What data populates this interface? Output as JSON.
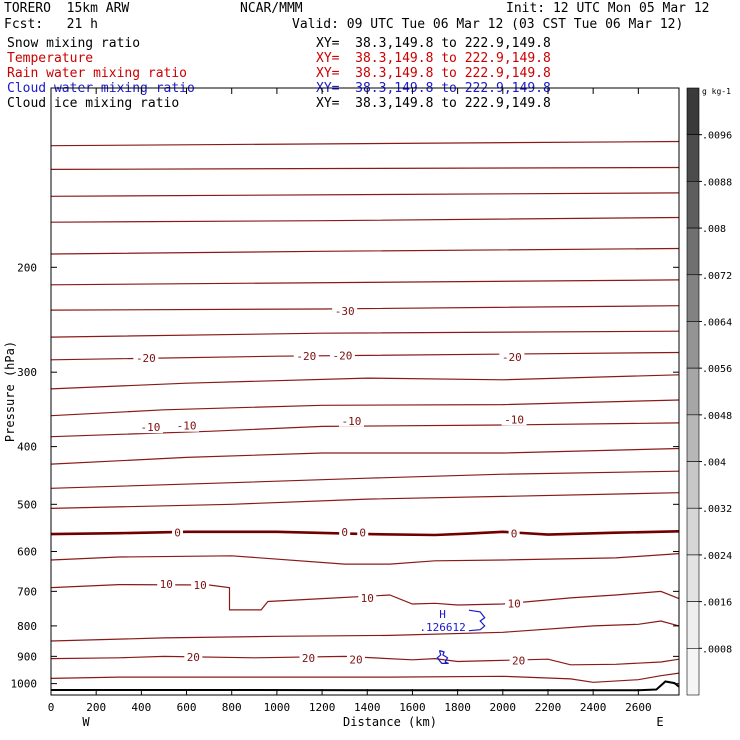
{
  "header": {
    "model": "TORERO  15km ARW",
    "center": "NCAR/MMM",
    "init": "Init: 12 UTC Mon 05 Mar 12",
    "fcst": "Fcst:   21 h",
    "valid": "Valid: 09 UTC Tue 06 Mar 12 (03 CST Tue 06 Mar 12)"
  },
  "fields": [
    {
      "name": "Snow mixing ratio",
      "xy": "XY=  38.3,149.8 to 222.9,149.8",
      "color": "#000000"
    },
    {
      "name": "Temperature",
      "xy": "XY=  38.3,149.8 to 222.9,149.8",
      "color": "#cc0000"
    },
    {
      "name": "Rain water mixing ratio",
      "xy": "XY=  38.3,149.8 to 222.9,149.8",
      "color": "#cc0000"
    },
    {
      "name": "Cloud water mixing ratio",
      "xy": "XY=  38.3,149.8 to 222.9,149.8",
      "color": "#1a1acc"
    },
    {
      "name": "Cloud ice mixing ratio",
      "xy": "XY=  38.3,149.8 to 222.9,149.8",
      "color": "#000000"
    }
  ],
  "chart_data": {
    "type": "contour",
    "xlabel": "Distance (km)",
    "ylabel": "Pressure (hPa)",
    "xlim": [
      0,
      2780
    ],
    "ylim": [
      1045,
      100
    ],
    "y_scale": "log",
    "x_ticks": [
      0,
      200,
      400,
      600,
      800,
      1000,
      1200,
      1400,
      1600,
      1800,
      2000,
      2200,
      2400,
      2600
    ],
    "y_ticks": [
      200,
      300,
      400,
      500,
      600,
      700,
      800,
      900,
      1000
    ],
    "x_end_labels": {
      "left": "W",
      "right": "E"
    },
    "temperature_contours": [
      {
        "level": -60,
        "points": [
          [
            0,
            125
          ],
          [
            2780,
            123
          ]
        ]
      },
      {
        "level": -55,
        "points": [
          [
            0,
            137
          ],
          [
            2780,
            136
          ]
        ]
      },
      {
        "level": -50,
        "points": [
          [
            0,
            152
          ],
          [
            2780,
            150
          ]
        ]
      },
      {
        "level": -50,
        "points": [
          [
            0,
            168
          ],
          [
            1200,
            167
          ],
          [
            2780,
            165
          ]
        ]
      },
      {
        "level": -40,
        "points": [
          [
            0,
            190
          ],
          [
            1200,
            188
          ],
          [
            2780,
            186
          ]
        ]
      },
      {
        "level": -40,
        "points": [
          [
            0,
            214
          ],
          [
            2780,
            210
          ]
        ]
      },
      {
        "level": -30,
        "points": [
          [
            0,
            236
          ],
          [
            1200,
            235
          ],
          [
            2780,
            232
          ]
        ]
      },
      {
        "level": -30,
        "points": [
          [
            0,
            262
          ],
          [
            1200,
            258
          ],
          [
            2780,
            256
          ]
        ]
      },
      {
        "level": -20,
        "points": [
          [
            0,
            286
          ],
          [
            1000,
            282
          ],
          [
            2780,
            278
          ]
        ]
      },
      {
        "level": -20,
        "points": [
          [
            0,
            320
          ],
          [
            600,
            313
          ],
          [
            1400,
            307
          ],
          [
            2000,
            309
          ],
          [
            2780,
            303
          ]
        ]
      },
      {
        "level": -20,
        "points": [
          [
            0,
            355
          ],
          [
            500,
            347
          ],
          [
            1200,
            341
          ],
          [
            2000,
            340
          ],
          [
            2780,
            334
          ]
        ]
      },
      {
        "level": -10,
        "points": [
          [
            0,
            385
          ],
          [
            700,
            377
          ],
          [
            1200,
            370
          ],
          [
            2000,
            368
          ],
          [
            2780,
            365
          ]
        ]
      },
      {
        "level": -10,
        "points": [
          [
            0,
            428
          ],
          [
            600,
            417
          ],
          [
            1200,
            410
          ],
          [
            2000,
            410
          ],
          [
            2780,
            403
          ]
        ]
      },
      {
        "level": -10,
        "points": [
          [
            0,
            470
          ],
          [
            800,
            460
          ],
          [
            1400,
            452
          ],
          [
            2000,
            445
          ],
          [
            2780,
            440
          ]
        ]
      },
      {
        "level": -10,
        "points": [
          [
            0,
            508
          ],
          [
            800,
            500
          ],
          [
            1400,
            490
          ],
          [
            2000,
            485
          ],
          [
            2780,
            478
          ]
        ]
      },
      {
        "level": 0,
        "points": [
          [
            0,
            561
          ],
          [
            300,
            559
          ],
          [
            600,
            556
          ],
          [
            1000,
            556
          ],
          [
            1400,
            561
          ],
          [
            1700,
            563
          ],
          [
            1850,
            560
          ],
          [
            2000,
            556
          ],
          [
            2200,
            562
          ],
          [
            2500,
            558
          ],
          [
            2780,
            555
          ]
        ]
      },
      {
        "level": 10,
        "points": [
          [
            0,
            620
          ],
          [
            300,
            613
          ],
          [
            800,
            610
          ],
          [
            1300,
            630
          ],
          [
            1500,
            630
          ],
          [
            1700,
            622
          ],
          [
            2000,
            620
          ],
          [
            2500,
            615
          ],
          [
            2780,
            605
          ]
        ]
      },
      {
        "level": 10,
        "points": [
          [
            0,
            690
          ],
          [
            300,
            682
          ],
          [
            700,
            683
          ],
          [
            790,
            690
          ],
          [
            790,
            752
          ],
          [
            930,
            752
          ],
          [
            960,
            728
          ],
          [
            1200,
            720
          ],
          [
            1500,
            710
          ],
          [
            1600,
            735
          ],
          [
            1700,
            733
          ],
          [
            1800,
            738
          ],
          [
            2000,
            735
          ],
          [
            2300,
            718
          ],
          [
            2500,
            710
          ],
          [
            2700,
            700
          ],
          [
            2780,
            720
          ]
        ]
      },
      {
        "level": 20,
        "points": [
          [
            0,
            848
          ],
          [
            500,
            838
          ],
          [
            1000,
            833
          ],
          [
            1500,
            830
          ],
          [
            2000,
            820
          ],
          [
            2400,
            800
          ],
          [
            2600,
            795
          ],
          [
            2700,
            785
          ],
          [
            2780,
            800
          ]
        ]
      },
      {
        "level": 20,
        "points": [
          [
            0,
            908
          ],
          [
            300,
            905
          ],
          [
            500,
            900
          ],
          [
            900,
            905
          ],
          [
            1300,
            900
          ],
          [
            1600,
            912
          ],
          [
            1700,
            908
          ],
          [
            1800,
            918
          ],
          [
            1950,
            915
          ],
          [
            2200,
            910
          ],
          [
            2300,
            930
          ],
          [
            2500,
            928
          ],
          [
            2700,
            920
          ],
          [
            2780,
            910
          ]
        ]
      },
      {
        "level": 20,
        "points": [
          [
            0,
            980
          ],
          [
            300,
            975
          ],
          [
            900,
            975
          ],
          [
            1500,
            975
          ],
          [
            2000,
            972
          ],
          [
            2300,
            982
          ],
          [
            2400,
            995
          ],
          [
            2600,
            985
          ],
          [
            2700,
            970
          ],
          [
            2780,
            960
          ]
        ]
      }
    ],
    "temperature_labels": [
      {
        "text": "-30",
        "x": 1300,
        "p": 237
      },
      {
        "text": "-20",
        "x": 420,
        "p": 284
      },
      {
        "text": "-20",
        "x": 1130,
        "p": 282
      },
      {
        "text": "-20",
        "x": 1290,
        "p": 281
      },
      {
        "text": "-20",
        "x": 2040,
        "p": 283
      },
      {
        "text": "-10",
        "x": 440,
        "p": 371
      },
      {
        "text": "-10",
        "x": 600,
        "p": 369
      },
      {
        "text": "-10",
        "x": 1330,
        "p": 362
      },
      {
        "text": "-10",
        "x": 2050,
        "p": 360
      },
      {
        "text": "0",
        "x": 560,
        "p": 558
      },
      {
        "text": "0",
        "x": 1300,
        "p": 556
      },
      {
        "text": "0",
        "x": 1380,
        "p": 558
      },
      {
        "text": "0",
        "x": 2050,
        "p": 560
      },
      {
        "text": "10",
        "x": 510,
        "p": 681
      },
      {
        "text": "10",
        "x": 660,
        "p": 683
      },
      {
        "text": "10",
        "x": 1400,
        "p": 718
      },
      {
        "text": "10",
        "x": 2050,
        "p": 733
      },
      {
        "text": "20",
        "x": 630,
        "p": 903
      },
      {
        "text": "20",
        "x": 1140,
        "p": 906
      },
      {
        "text": "20",
        "x": 1350,
        "p": 911
      },
      {
        "text": "20",
        "x": 2070,
        "p": 914
      }
    ],
    "cloud_water": [
      {
        "points": [
          [
            1850,
            753
          ],
          [
            1900,
            758
          ],
          [
            1920,
            775
          ],
          [
            1900,
            785
          ],
          [
            1920,
            800
          ],
          [
            1900,
            812
          ],
          [
            1850,
            815
          ]
        ]
      },
      {
        "points": [
          [
            1720,
            880
          ],
          [
            1740,
            885
          ],
          [
            1735,
            895
          ],
          [
            1755,
            905
          ],
          [
            1745,
            920
          ],
          [
            1760,
            925
          ],
          [
            1730,
            925
          ],
          [
            1710,
            905
          ],
          [
            1725,
            895
          ],
          [
            1720,
            880
          ]
        ]
      }
    ],
    "extremum": {
      "symbol": "H",
      "value": ".126612",
      "x": 1760,
      "p": 788
    },
    "terrain": {
      "points": [
        [
          0,
          1025
        ],
        [
          900,
          1025
        ],
        [
          1500,
          1026
        ],
        [
          2000,
          1026
        ],
        [
          2600,
          1026
        ],
        [
          2680,
          1023
        ],
        [
          2720,
          992
        ],
        [
          2760,
          998
        ],
        [
          2780,
          1012
        ]
      ]
    },
    "colorbar": {
      "unit": "g kg-1",
      "labels": [
        ".0096",
        ".0088",
        ".008",
        ".0072",
        ".0064",
        ".0056",
        ".0048",
        ".004",
        ".0032",
        ".0024",
        ".0016",
        ".0008"
      ],
      "colors": [
        "#3a3a3a",
        "#4c4c4c",
        "#5e5e5e",
        "#707070",
        "#828282",
        "#949494",
        "#a6a6a6",
        "#b7b7b7",
        "#c8c8c8",
        "#d6d6d6",
        "#e3e3e3",
        "#eeeeee",
        "#f5f5f5"
      ]
    }
  }
}
